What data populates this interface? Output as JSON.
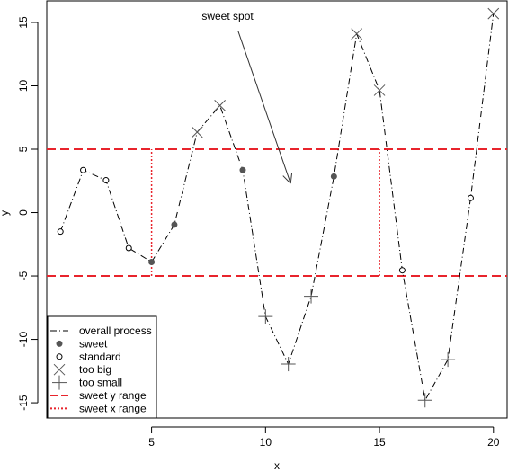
{
  "chart_data": {
    "type": "line",
    "title": "",
    "xlabel": "x",
    "ylabel": "y",
    "xlim": [
      0.4,
      20.6
    ],
    "ylim": [
      -16.2,
      16.7
    ],
    "xticks": [
      5,
      10,
      15,
      20
    ],
    "yticks": [
      -15,
      -10,
      -5,
      0,
      5,
      10,
      15
    ],
    "x": [
      1,
      2,
      3,
      4,
      5,
      6,
      7,
      8,
      9,
      10,
      11,
      12,
      13,
      14,
      15,
      16,
      17,
      18,
      19,
      20
    ],
    "y": [
      -1.5,
      3.35,
      2.55,
      -2.8,
      -3.9,
      -0.95,
      6.35,
      8.45,
      3.35,
      -8.2,
      -11.95,
      -6.6,
      2.85,
      14.1,
      9.65,
      -4.55,
      -14.8,
      -11.6,
      1.15,
      15.7
    ],
    "categories": [
      "standard",
      "standard",
      "standard",
      "standard",
      "sweet",
      "sweet",
      "too big",
      "too big",
      "sweet",
      "too small",
      "too small",
      "too small",
      "sweet",
      "too big",
      "too big",
      "standard",
      "too small",
      "too small",
      "standard",
      "too big"
    ],
    "sweet_y_range": [
      -5,
      5
    ],
    "sweet_x_range": [
      5,
      15
    ],
    "annotation": {
      "text": "sweet spot",
      "text_at": [
        7.2,
        15.2
      ],
      "arrow_from": [
        8.8,
        14.3
      ],
      "arrow_to": [
        11.1,
        2.3
      ]
    },
    "legend": {
      "position": "bottom-left",
      "entries": [
        "overall process",
        "sweet",
        "standard",
        "too big",
        "too small",
        "sweet y range",
        "sweet x range"
      ]
    },
    "colors": {
      "process": "#000000",
      "points": "#555555",
      "range": "#e8242c"
    }
  }
}
